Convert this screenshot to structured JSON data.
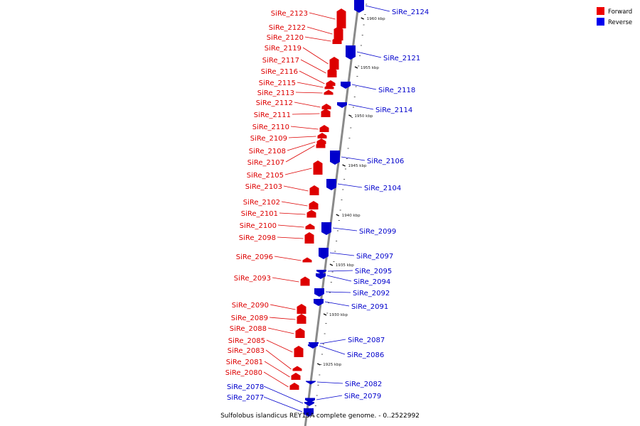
{
  "caption": "Sulfolobus islandicus REY15A complete genome. - 0..2522992",
  "legend": [
    {
      "label": "Forward",
      "color": "#ee0000"
    },
    {
      "label": "Reverse",
      "color": "#0000ee"
    }
  ],
  "colors": {
    "forward": "#dd0000",
    "reverse": "#0000cc",
    "axis": "#8a8a8a"
  },
  "kbp_ticks": [
    "1960 kbp",
    "1955 kbp",
    "1950 kbp",
    "1945 kbp",
    "1940 kbp",
    "1935 kbp",
    "1930 kbp",
    "1925 kbp"
  ],
  "forward_genes": [
    "SiRe_2123",
    "SiRe_2122",
    "SiRe_2120",
    "SiRe_2119",
    "SiRe_2117",
    "SiRe_2116",
    "SiRe_2115",
    "SiRe_2113",
    "SiRe_2112",
    "SiRe_2111",
    "SiRe_2110",
    "SiRe_2109",
    "SiRe_2108",
    "SiRe_2107",
    "SiRe_2105",
    "SiRe_2103",
    "SiRe_2102",
    "SiRe_2101",
    "SiRe_2100",
    "SiRe_2098",
    "SiRe_2096",
    "SiRe_2093",
    "SiRe_2090",
    "SiRe_2089",
    "SiRe_2088",
    "SiRe_2085",
    "SiRe_2083",
    "SiRe_2081",
    "SiRe_2080"
  ],
  "reverse_genes": [
    "SiRe_2124",
    "SiRe_2121",
    "SiRe_2118",
    "SiRe_2114",
    "SiRe_2106",
    "SiRe_2104",
    "SiRe_2099",
    "SiRe_2097",
    "SiRe_2095",
    "SiRe_2094",
    "SiRe_2092",
    "SiRe_2091",
    "SiRe_2087",
    "SiRe_2086",
    "SiRe_2082",
    "SiRe_2079",
    "SiRe_2078",
    "SiRe_2077"
  ]
}
